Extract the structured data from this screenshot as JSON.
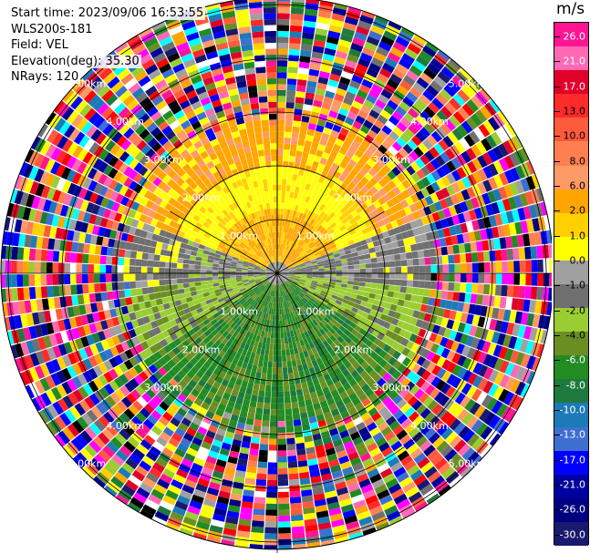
{
  "header": {
    "start_time": "Start time: 2023/09/06 16:53:55",
    "instrument": "WLS200s-181",
    "field": "Field: VEL",
    "elevation": "Elevation(deg): 35.30",
    "nrays": "NRays: 120"
  },
  "colorbar": {
    "unit": "m/s",
    "ticks": [
      "26.0",
      "21.0",
      "17.0",
      "13.0",
      "10.0",
      "8.0",
      "6.0",
      "2.0",
      "1.0",
      "0.0",
      "-1.0",
      "-2.0",
      "-4.0",
      "-6.0",
      "-8.0",
      "-10.0",
      "-13.0",
      "-17.0",
      "-21.0",
      "-26.0",
      "-30.0"
    ],
    "colors": [
      "#ff1493",
      "#ff69b4",
      "#e0002a",
      "#ff2a2a",
      "#ff5a3c",
      "#ff7f50",
      "#ff9a66",
      "#ffa500",
      "#ffd000",
      "#ffff00",
      "#a0a0a0",
      "#707070",
      "#9acd32",
      "#6b8e23",
      "#228b22",
      "#1e7a3c",
      "#1c7ab6",
      "#3d6fd1",
      "#0000ff",
      "#0000a0",
      "#000080",
      "#191970"
    ]
  },
  "chart_data": {
    "type": "heatmap",
    "projection": "polar PPI",
    "field": "VEL",
    "units": "m/s",
    "nrays": 120,
    "ring_labels": [
      "1.00km",
      "2.00km",
      "3.00km",
      "4.00km",
      "5.00km"
    ],
    "velocity_range": [
      -30,
      30
    ],
    "pattern": [
      {
        "range_km": [
          0,
          1.3
        ],
        "azimuth": "north",
        "value_ms": 3
      },
      {
        "range_km": [
          0,
          2.2
        ],
        "azimuth": "north",
        "value_ms": 4
      },
      {
        "range_km": [
          0,
          2.2
        ],
        "azimuth": "east-west",
        "value_ms": 0
      },
      {
        "range_km": [
          0,
          2.6
        ],
        "azimuth": "south",
        "value_ms": -5
      },
      {
        "range_km": [
          2.6,
          6.5
        ],
        "azimuth": "all",
        "value_ms": "noise"
      }
    ]
  }
}
